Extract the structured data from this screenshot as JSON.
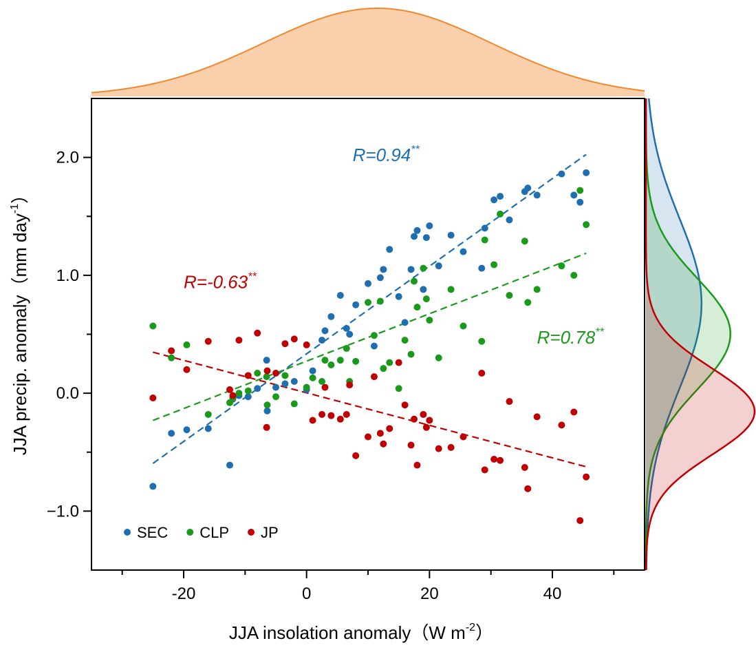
{
  "chart_data": {
    "type": "scatter",
    "x_label": {
      "text": "JJA insolation anomaly（W m",
      "sup": "-2",
      "after": "）"
    },
    "y_label": {
      "text": "JJA precip. anomaly（mm day",
      "sup": "-1",
      "after": "）"
    },
    "x": [
      -25,
      -22,
      -19.5,
      -16,
      -12.5,
      -12,
      -11,
      -9.5,
      -8,
      -6.5,
      -6.4,
      -5,
      -3.5,
      -2,
      0,
      1,
      2.5,
      3,
      4,
      5.5,
      6.5,
      7,
      8,
      10,
      11,
      12,
      12.5,
      13.5,
      15,
      16,
      17,
      17.5,
      18,
      19,
      19.5,
      20,
      21.5,
      23.5,
      25.5,
      28.5,
      29,
      30.5,
      31.5,
      33,
      35.5,
      36,
      37.5,
      41.5,
      43.5,
      44.5,
      45.5
    ],
    "series": [
      {
        "name": "SEC",
        "color": "#1f6fb0",
        "values": [
          -0.79,
          -0.34,
          -0.31,
          -0.3,
          -0.61,
          -0.05,
          -0.02,
          -0.03,
          0.04,
          0.28,
          -0.15,
          0.05,
          0.08,
          0.1,
          0.03,
          0.19,
          0.45,
          0.53,
          0.65,
          0.83,
          0.55,
          0.5,
          0.75,
          0.93,
          0.4,
          0.98,
          1.05,
          1.22,
          0.82,
          0.6,
          1.05,
          1.33,
          1.38,
          0.88,
          1.32,
          1.42,
          1.08,
          1.34,
          1.2,
          1.06,
          1.4,
          1.64,
          1.67,
          1.47,
          1.71,
          1.74,
          1.68,
          1.86,
          1.68,
          1.62,
          1.87
        ]
      },
      {
        "name": "CLP",
        "color": "#1a9a1a",
        "values": [
          0.57,
          0.3,
          0.41,
          -0.18,
          -0.08,
          -0.04,
          0.0,
          0.02,
          0.17,
          0.14,
          -0.1,
          -0.03,
          0.15,
          -0.09,
          0.05,
          0.13,
          0.1,
          0.28,
          0.24,
          0.28,
          0.38,
          0.1,
          0.27,
          0.77,
          0.49,
          0.78,
          0.21,
          0.26,
          0.04,
          0.45,
          0.33,
          0.95,
          0.73,
          1.06,
          0.8,
          0.62,
          0.3,
          0.88,
          0.57,
          0.44,
          1.3,
          1.09,
          1.52,
          0.83,
          1.29,
          0.77,
          0.88,
          1.08,
          1.0,
          1.72,
          1.43
        ]
      },
      {
        "name": "JP",
        "color": "#c00000",
        "values": [
          -0.04,
          0.36,
          0.2,
          0.44,
          0.03,
          -0.02,
          0.45,
          0.15,
          0.51,
          -0.29,
          0.19,
          0.17,
          0.42,
          0.46,
          0.41,
          -0.23,
          -0.18,
          0.05,
          -0.19,
          -0.22,
          -0.18,
          0.07,
          -0.53,
          -0.37,
          0.14,
          -0.34,
          -0.43,
          -0.3,
          0.26,
          -0.1,
          -0.44,
          -0.22,
          -0.61,
          -0.18,
          -0.29,
          -0.23,
          -0.47,
          -0.46,
          -0.37,
          0.17,
          -0.65,
          -0.56,
          -0.57,
          -0.07,
          -0.63,
          -0.81,
          -0.2,
          -0.27,
          -0.16,
          -1.08,
          -0.71
        ]
      }
    ],
    "annotations": [
      {
        "text": "R=0.94",
        "sup": "**",
        "color": "#1f6fb0",
        "x": 7.5,
        "y": 1.97
      },
      {
        "text": "R=-0.63",
        "sup": "**",
        "color": "#c00000",
        "x": -20,
        "y": 0.89
      },
      {
        "text": "R=0.78",
        "sup": "**",
        "color": "#1a9a1a",
        "x": 37.5,
        "y": 0.42
      }
    ],
    "marginal_color": "#f0882f",
    "xlim": [
      -35,
      55
    ],
    "xticks": [
      -20,
      0,
      20,
      40
    ],
    "xminorticks": [
      -30,
      -10,
      10,
      30,
      50
    ],
    "ylim": [
      -1.5,
      2.5
    ],
    "yticks": [
      {
        "value": -1,
        "label": "−1.0"
      },
      {
        "value": 0,
        "label": "0.0"
      },
      {
        "value": 1,
        "label": "1.0"
      },
      {
        "value": 2,
        "label": "2.0"
      }
    ],
    "yminorticks": [
      -0.5,
      0.5,
      1.5
    ],
    "legend": "lower left"
  }
}
